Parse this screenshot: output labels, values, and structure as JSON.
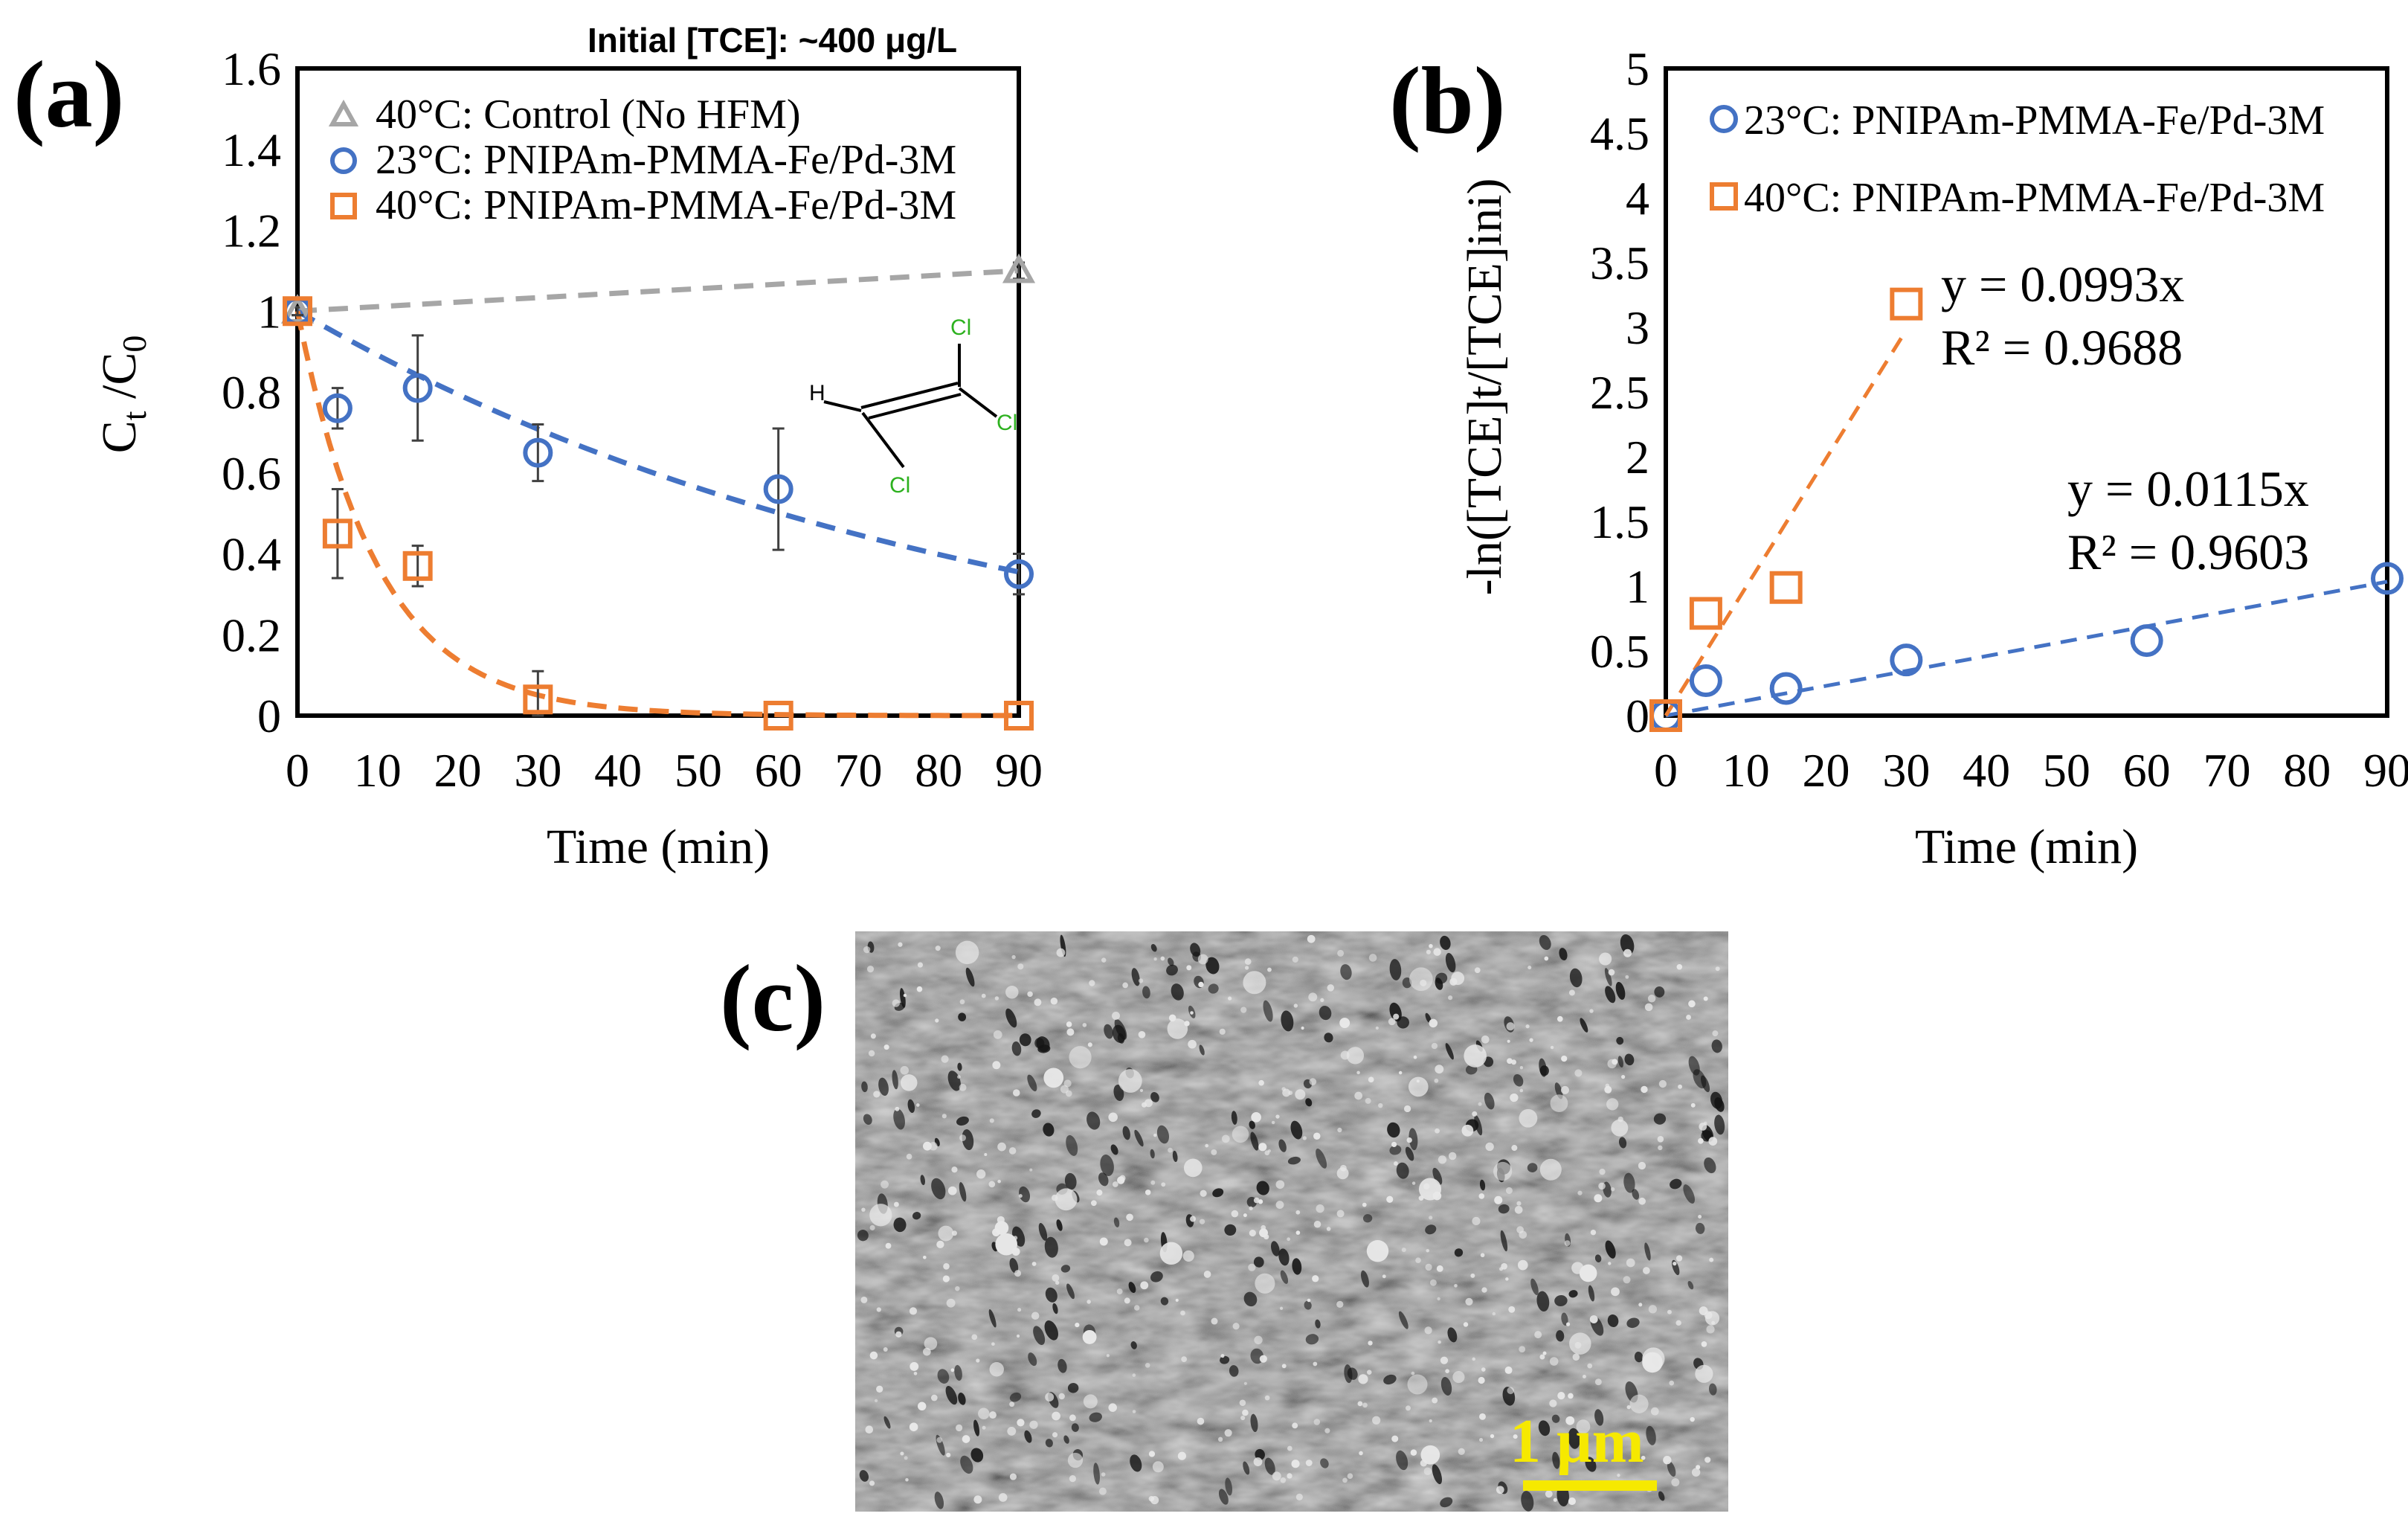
{
  "panels": {
    "a": "(a)",
    "b": "(b)",
    "c": "(c)"
  },
  "colors": {
    "blue": "#4472c4",
    "orange": "#ed7d31",
    "gray": "#a6a6a6",
    "green": "#2db11f",
    "scale": "#f6e900"
  },
  "chart_data": [
    {
      "id": "a",
      "type": "scatter",
      "note": "Initial [TCE]: ~400 μg/L",
      "xlabel": "Time (min)",
      "ylabel": "Ct /C0",
      "ylabel_main": "C",
      "ylabel_sub1": "t",
      "ylabel_mid": " /C",
      "ylabel_sub2": "0",
      "xlim": [
        0,
        90
      ],
      "ylim": [
        0,
        1.6
      ],
      "xticks": [
        0,
        10,
        20,
        30,
        40,
        50,
        60,
        70,
        80,
        90
      ],
      "yticks": [
        0,
        0.2,
        0.4,
        0.6,
        0.8,
        1,
        1.2,
        1.4,
        1.6
      ],
      "series": [
        {
          "name": "40°C: Control (No HFM)",
          "marker": "triangle",
          "color": "#a6a6a6",
          "x": [
            0,
            90
          ],
          "y": [
            1.0,
            1.1
          ],
          "err": [
            0.0,
            0.02
          ],
          "fit": {
            "kind": "linear",
            "x": [
              0,
              90
            ],
            "y": [
              1.0,
              1.1
            ]
          }
        },
        {
          "name": "23°C: PNIPAm-PMMA-Fe/Pd-3M",
          "marker": "circle",
          "color": "#4472c4",
          "x": [
            0,
            5,
            15,
            30,
            60,
            90
          ],
          "y": [
            1.0,
            0.76,
            0.81,
            0.65,
            0.56,
            0.35
          ],
          "err": [
            0.01,
            0.05,
            0.13,
            0.07,
            0.15,
            0.05
          ],
          "fit": {
            "kind": "exp",
            "k": 0.0115
          }
        },
        {
          "name": "40°C: PNIPAm-PMMA-Fe/Pd-3M",
          "marker": "square",
          "color": "#ed7d31",
          "x": [
            0,
            5,
            15,
            30,
            60,
            90
          ],
          "y": [
            1.0,
            0.45,
            0.37,
            0.04,
            0.0,
            0.0
          ],
          "err": [
            0.01,
            0.11,
            0.05,
            0.07,
            0.0,
            0.0
          ],
          "fit": {
            "kind": "exp",
            "k": 0.0993
          }
        }
      ],
      "molecule": {
        "atoms": [
          "Cl",
          "Cl",
          "Cl",
          "H"
        ]
      }
    },
    {
      "id": "b",
      "type": "scatter",
      "xlabel": "Time (min)",
      "ylabel": "-ln([TCE]t/[TCE]ini)",
      "xlim": [
        0,
        90
      ],
      "ylim": [
        0,
        5
      ],
      "xticks": [
        0,
        10,
        20,
        30,
        40,
        50,
        60,
        70,
        80,
        90
      ],
      "yticks": [
        0,
        0.5,
        1,
        1.5,
        2,
        2.5,
        3,
        3.5,
        4,
        4.5,
        5
      ],
      "series": [
        {
          "name": "23°C: PNIPAm-PMMA-Fe/Pd-3M",
          "marker": "circle",
          "color": "#4472c4",
          "x": [
            0,
            5,
            15,
            30,
            60,
            90
          ],
          "y": [
            0.0,
            0.27,
            0.21,
            0.43,
            0.58,
            1.06
          ],
          "fit": {
            "kind": "linear",
            "slope": 0.0115,
            "x": [
              0,
              90
            ]
          },
          "equation": "y = 0.0115x",
          "r2": "R² = 0.9603"
        },
        {
          "name": "40°C: PNIPAm-PMMA-Fe/Pd-3M",
          "marker": "square",
          "color": "#ed7d31",
          "x": [
            0,
            5,
            15,
            30
          ],
          "y": [
            0.0,
            0.79,
            0.99,
            3.18
          ],
          "fit": {
            "kind": "linear",
            "slope": 0.0993,
            "x": [
              0,
              30
            ]
          },
          "equation": "y = 0.0993x",
          "r2": "R² = 0.9688"
        }
      ]
    }
  ],
  "micrograph": {
    "scale_bar": "1 μm"
  }
}
